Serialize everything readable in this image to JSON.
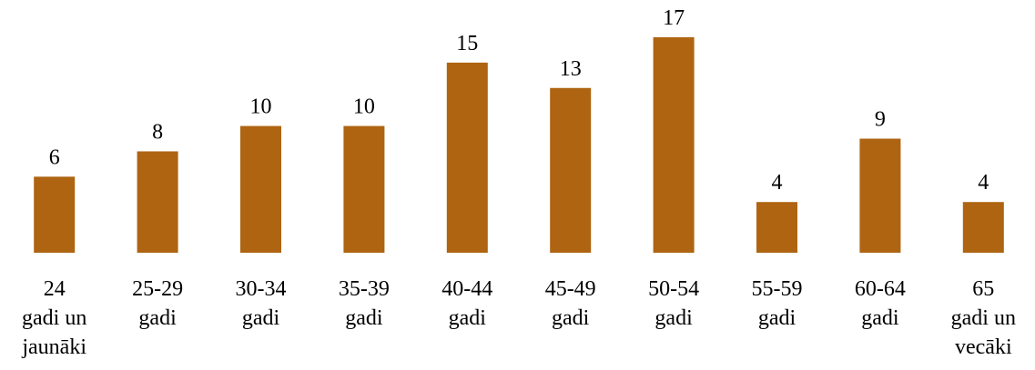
{
  "chart_data": {
    "type": "bar",
    "categories": [
      "24\ngadi un\njaunāki",
      "25-29\ngadi",
      "30-34\ngadi",
      "35-39\ngadi",
      "40-44\ngadi",
      "45-49\ngadi",
      "50-54\ngadi",
      "55-59\ngadi",
      "60-64\ngadi",
      "65\ngadi un\nvecāki"
    ],
    "values": [
      6,
      8,
      10,
      10,
      15,
      13,
      17,
      4,
      9,
      4
    ],
    "color": "#ae6411"
  }
}
